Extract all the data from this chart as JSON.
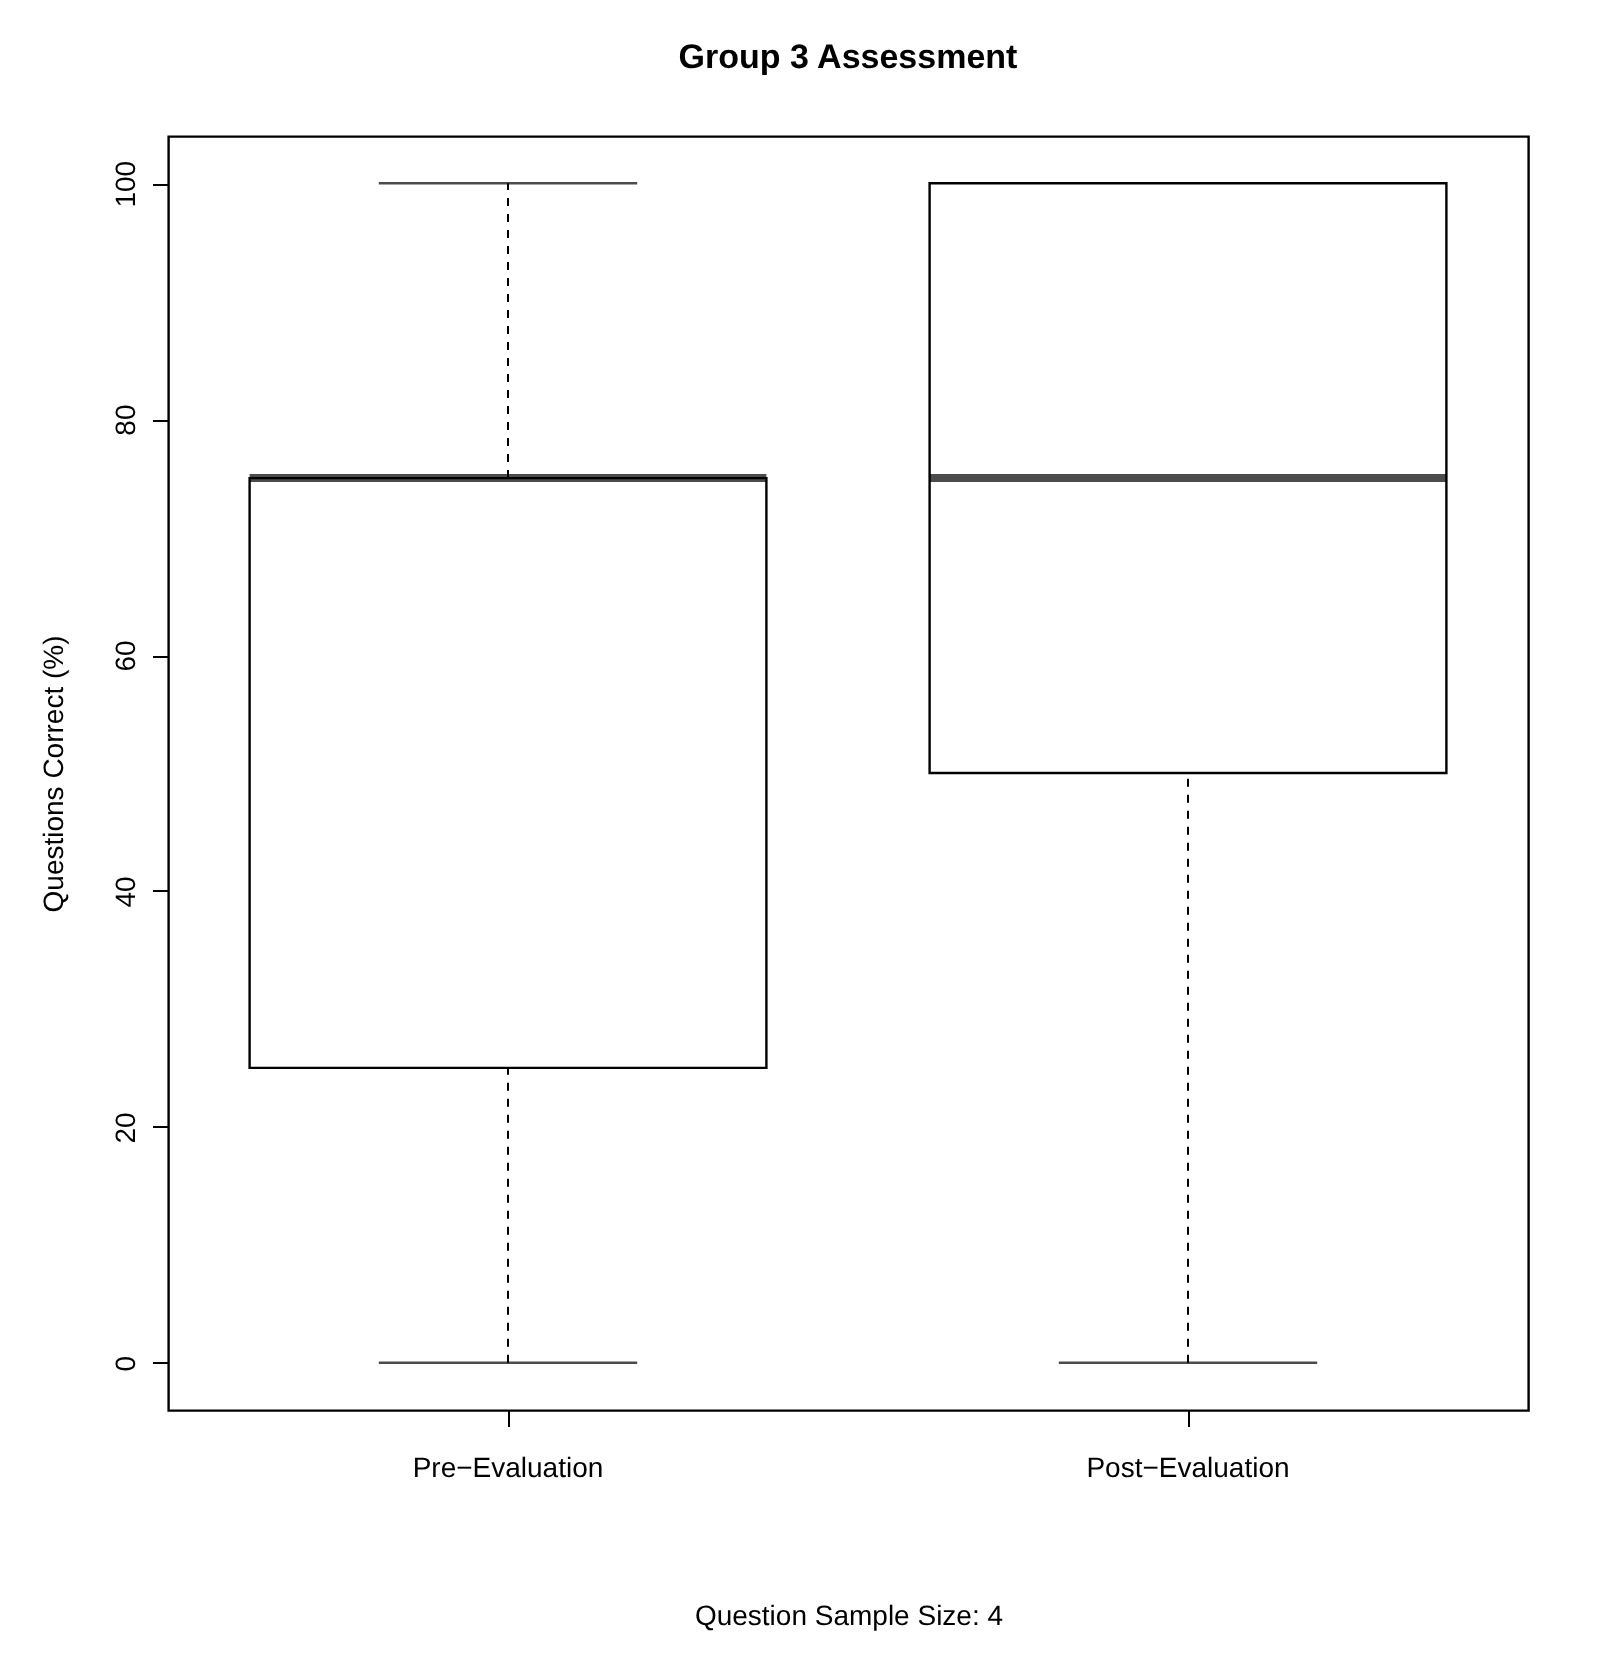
{
  "chart_data": {
    "type": "box",
    "title": "Group 3 Assessment",
    "xlabel": "Question Sample Size: 4",
    "ylabel": "Questions Correct (%)",
    "categories": [
      "Pre−Evaluation",
      "Post−Evaluation"
    ],
    "boxes": [
      {
        "low": 0,
        "q1": 25,
        "median": 75,
        "q3": 75,
        "high": 100
      },
      {
        "low": 0,
        "q1": 50,
        "median": 75,
        "q3": 100,
        "high": 100
      }
    ],
    "ylim": [
      -4,
      104
    ],
    "yticks": [
      0,
      20,
      40,
      60,
      80,
      100
    ]
  }
}
